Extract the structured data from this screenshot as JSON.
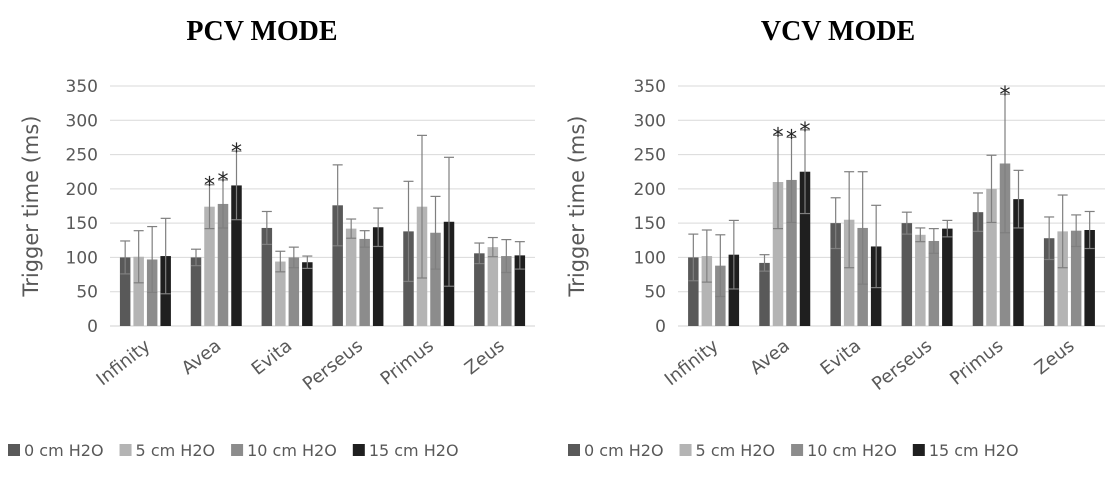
{
  "chart_data": [
    {
      "type": "bar",
      "title": "PCV MODE",
      "xlabel": "",
      "ylabel": "Trigger time (ms)",
      "ylim": [
        0,
        350
      ],
      "yticks": [
        0,
        50,
        100,
        150,
        200,
        250,
        300,
        350
      ],
      "grid": true,
      "legend_position": "bottom",
      "categories": [
        "Infinity",
        "Avea",
        "Evita",
        "Perseus",
        "Primus",
        "Zeus"
      ],
      "series": [
        {
          "name": "0 cm H2O",
          "color": "#595959",
          "values": [
            100,
            100,
            143,
            176,
            138,
            106
          ],
          "errors": [
            24,
            12,
            24,
            59,
            73,
            15
          ]
        },
        {
          "name": "5 cm H2O",
          "color": "#b4b4b4",
          "values": [
            101,
            174,
            94,
            142,
            174,
            115
          ],
          "errors": [
            38,
            32,
            15,
            14,
            104,
            14
          ]
        },
        {
          "name": "10 cm H2O",
          "color": "#8c8c8c",
          "values": [
            97,
            178,
            100,
            127,
            136,
            102
          ],
          "errors": [
            48,
            35,
            15,
            12,
            53,
            24
          ]
        },
        {
          "name": "15 cm H2O",
          "color": "#1f1f1f",
          "values": [
            102,
            205,
            93,
            144,
            152,
            103
          ],
          "errors": [
            55,
            50,
            9,
            28,
            94,
            20
          ]
        }
      ],
      "annotations": [
        {
          "category": "Avea",
          "series": "5 cm H2O",
          "text": "*"
        },
        {
          "category": "Avea",
          "series": "10 cm H2O",
          "text": "*"
        },
        {
          "category": "Avea",
          "series": "15 cm H2O",
          "text": "*"
        }
      ]
    },
    {
      "type": "bar",
      "title": "VCV MODE",
      "xlabel": "",
      "ylabel": "Trigger time (ms)",
      "ylim": [
        0,
        350
      ],
      "yticks": [
        0,
        50,
        100,
        150,
        200,
        250,
        300,
        350
      ],
      "grid": true,
      "legend_position": "bottom",
      "categories": [
        "Infinity",
        "Avea",
        "Evita",
        "Perseus",
        "Primus",
        "Zeus"
      ],
      "series": [
        {
          "name": "0 cm H2O",
          "color": "#595959",
          "values": [
            100,
            92,
            150,
            150,
            166,
            128
          ],
          "errors": [
            34,
            12,
            37,
            16,
            28,
            31
          ]
        },
        {
          "name": "5 cm H2O",
          "color": "#b4b4b4",
          "values": [
            102,
            210,
            155,
            133,
            200,
            138
          ],
          "errors": [
            38,
            68,
            70,
            10,
            49,
            53
          ]
        },
        {
          "name": "10 cm H2O",
          "color": "#8c8c8c",
          "values": [
            88,
            213,
            143,
            124,
            237,
            139
          ],
          "errors": [
            45,
            62,
            82,
            18,
            101,
            23
          ]
        },
        {
          "name": "15 cm H2O",
          "color": "#1f1f1f",
          "values": [
            104,
            225,
            116,
            142,
            185,
            140
          ],
          "errors": [
            50,
            61,
            60,
            12,
            42,
            27
          ]
        }
      ],
      "annotations": [
        {
          "category": "Avea",
          "series": "5 cm H2O",
          "text": "*"
        },
        {
          "category": "Avea",
          "series": "10 cm H2O",
          "text": "*"
        },
        {
          "category": "Avea",
          "series": "15 cm H2O",
          "text": "*"
        },
        {
          "category": "Primus",
          "series": "10 cm H2O",
          "text": "*"
        }
      ]
    }
  ]
}
